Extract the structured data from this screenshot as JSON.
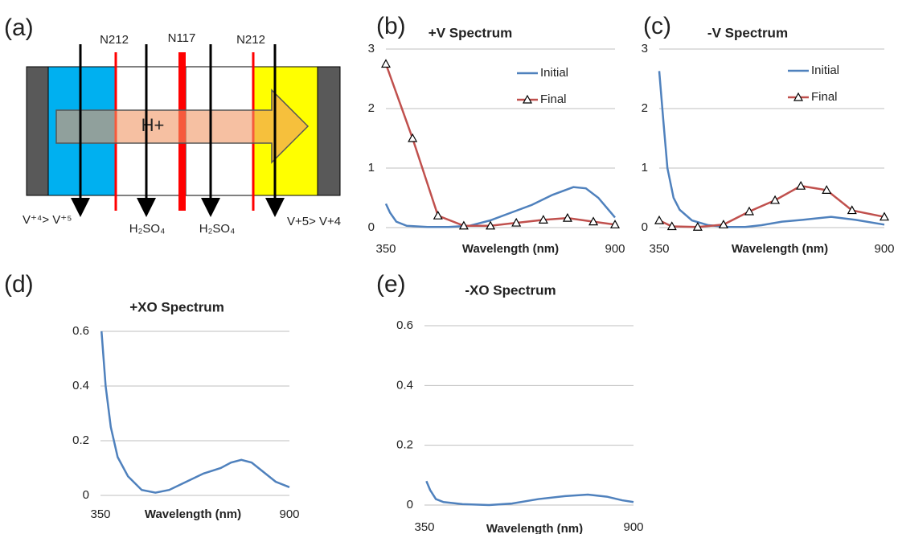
{
  "diagram": {
    "label": "(a)",
    "membranes": [
      "N212",
      "N117",
      "N212"
    ],
    "arrow": "H+",
    "bottom": [
      "V⁺⁴> V⁺⁵",
      "H₂SO₄",
      "H₂SO₄",
      "V+5> V+4"
    ]
  },
  "chart_data": [
    {
      "type": "line",
      "panel": "(b)",
      "title": "+V Spectrum",
      "x_label": "Wavelength (nm)",
      "xlim": [
        350,
        900
      ],
      "xticks": [
        350,
        900
      ],
      "ylim": [
        0,
        3
      ],
      "yticks": [
        0,
        1,
        2,
        3
      ],
      "grid": true,
      "legend": "upper right",
      "series": [
        {
          "name": "Initial",
          "color": "#4f81bd",
          "x": [
            350,
            360,
            375,
            400,
            450,
            500,
            550,
            600,
            650,
            700,
            750,
            800,
            830,
            860,
            900
          ],
          "values": [
            0.4,
            0.25,
            0.1,
            0.03,
            0.01,
            0.01,
            0.03,
            0.12,
            0.25,
            0.38,
            0.55,
            0.68,
            0.66,
            0.5,
            0.17
          ]
        },
        {
          "name": "Final",
          "color": "#c0504d",
          "marker": "triangle",
          "x": [
            350,
            414,
            475,
            537,
            601,
            663,
            728,
            786,
            848,
            900
          ],
          "values": [
            2.75,
            1.5,
            0.2,
            0.03,
            0.03,
            0.08,
            0.13,
            0.16,
            0.1,
            0.05
          ]
        }
      ]
    },
    {
      "type": "line",
      "panel": "(c)",
      "title": "-V Spectrum",
      "x_label": "Wavelength (nm)",
      "xlim": [
        350,
        900
      ],
      "xticks": [
        350,
        900
      ],
      "ylim": [
        0,
        3
      ],
      "yticks": [
        0,
        1,
        2,
        3
      ],
      "grid": true,
      "legend": "upper right",
      "series": [
        {
          "name": "Initial",
          "color": "#4f81bd",
          "x": [
            350,
            360,
            370,
            385,
            400,
            430,
            470,
            520,
            560,
            600,
            650,
            700,
            770,
            830,
            900
          ],
          "values": [
            2.63,
            1.8,
            1.0,
            0.5,
            0.3,
            0.12,
            0.04,
            0.01,
            0.01,
            0.04,
            0.1,
            0.13,
            0.18,
            0.13,
            0.05
          ]
        },
        {
          "name": "Final",
          "color": "#c0504d",
          "marker": "triangle",
          "x": [
            350,
            381,
            444,
            507,
            570,
            633,
            696,
            759,
            821,
            900
          ],
          "values": [
            0.12,
            0.02,
            0.01,
            0.05,
            0.27,
            0.46,
            0.7,
            0.63,
            0.29,
            0.18
          ]
        }
      ]
    },
    {
      "type": "line",
      "panel": "(d)",
      "title": "+XO Spectrum",
      "x_label": "Wavelength (nm)",
      "xlim": [
        350,
        900
      ],
      "xticks": [
        350,
        900
      ],
      "ylim": [
        0,
        0.6
      ],
      "yticks": [
        0,
        0.2,
        0.4,
        0.6
      ],
      "grid": true,
      "series": [
        {
          "color": "#4f81bd",
          "x": [
            353,
            365,
            380,
            400,
            430,
            470,
            510,
            550,
            600,
            650,
            700,
            730,
            760,
            790,
            820,
            860,
            900
          ],
          "values": [
            0.6,
            0.4,
            0.25,
            0.14,
            0.07,
            0.02,
            0.01,
            0.02,
            0.05,
            0.08,
            0.1,
            0.12,
            0.13,
            0.12,
            0.09,
            0.05,
            0.03
          ]
        }
      ]
    },
    {
      "type": "line",
      "panel": "(e)",
      "title": "-XO Spectrum",
      "x_label": "Wavelength (nm)",
      "xlim": [
        350,
        900
      ],
      "xticks": [
        350,
        900
      ],
      "ylim": [
        0,
        0.6
      ],
      "yticks": [
        0,
        0.2,
        0.4,
        0.6
      ],
      "grid": true,
      "series": [
        {
          "color": "#4f81bd",
          "x": [
            355,
            365,
            380,
            400,
            450,
            520,
            580,
            650,
            720,
            780,
            830,
            870,
            900
          ],
          "values": [
            0.08,
            0.05,
            0.02,
            0.01,
            0.003,
            0,
            0.005,
            0.02,
            0.03,
            0.035,
            0.028,
            0.016,
            0.01
          ]
        }
      ]
    }
  ]
}
